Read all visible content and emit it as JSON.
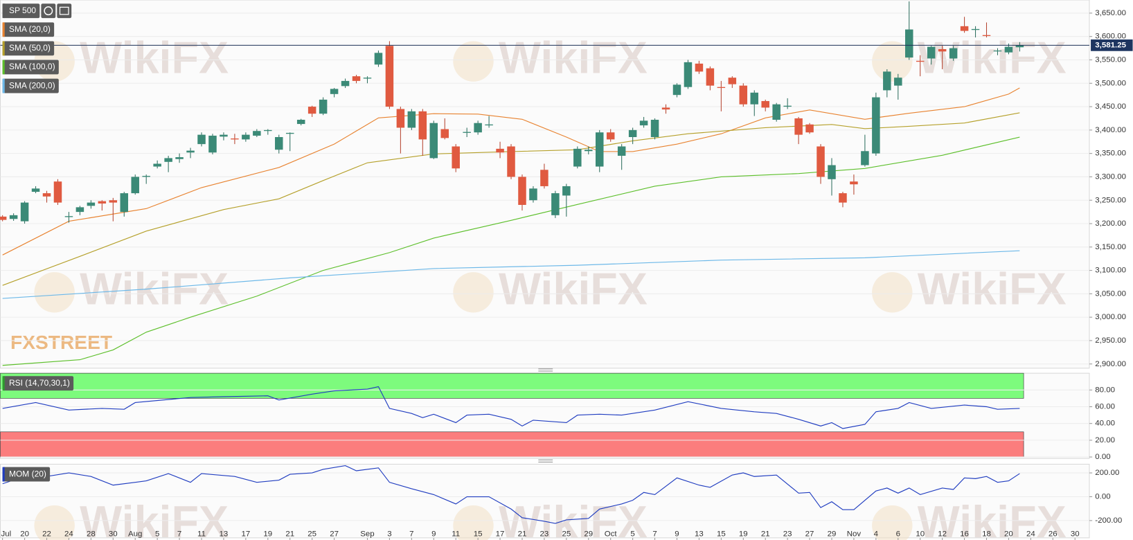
{
  "chart_data": [
    {
      "type": "candlestick",
      "title": "SP 500",
      "watermark": "WikiFX",
      "logo": "FXSTREET",
      "xlim": [
        -0.2,
        98.3
      ],
      "xticks": [
        {
          "value": 0,
          "label": "Jul"
        },
        {
          "value": 2,
          "label": "20"
        },
        {
          "value": 4,
          "label": "22"
        },
        {
          "value": 6,
          "label": "24"
        },
        {
          "value": 8,
          "label": "28"
        },
        {
          "value": 10,
          "label": "30"
        },
        {
          "value": 12,
          "label": "Aug"
        },
        {
          "value": 14,
          "label": "5"
        },
        {
          "value": 16,
          "label": "7"
        },
        {
          "value": 18,
          "label": "11"
        },
        {
          "value": 20,
          "label": "13"
        },
        {
          "value": 22,
          "label": "17"
        },
        {
          "value": 24,
          "label": "19"
        },
        {
          "value": 26,
          "label": "21"
        },
        {
          "value": 28,
          "label": "25"
        },
        {
          "value": 30,
          "label": "27"
        },
        {
          "value": 33,
          "label": "Sep"
        },
        {
          "value": 35,
          "label": "3"
        },
        {
          "value": 37,
          "label": "7"
        },
        {
          "value": 39,
          "label": "9"
        },
        {
          "value": 41,
          "label": "11"
        },
        {
          "value": 43,
          "label": "15"
        },
        {
          "value": 45,
          "label": "17"
        },
        {
          "value": 47,
          "label": "21"
        },
        {
          "value": 49,
          "label": "23"
        },
        {
          "value": 51,
          "label": "25"
        },
        {
          "value": 53,
          "label": "29"
        },
        {
          "value": 55,
          "label": "Oct"
        },
        {
          "value": 57,
          "label": "5"
        },
        {
          "value": 59,
          "label": "7"
        },
        {
          "value": 61,
          "label": "9"
        },
        {
          "value": 63,
          "label": "13"
        },
        {
          "value": 65,
          "label": "15"
        },
        {
          "value": 67,
          "label": "19"
        },
        {
          "value": 69,
          "label": "21"
        },
        {
          "value": 71,
          "label": "23"
        },
        {
          "value": 73,
          "label": "27"
        },
        {
          "value": 75,
          "label": "29"
        },
        {
          "value": 77,
          "label": "Nov"
        },
        {
          "value": 79,
          "label": "4"
        },
        {
          "value": 81,
          "label": "6"
        },
        {
          "value": 83,
          "label": "10"
        },
        {
          "value": 85,
          "label": "12"
        },
        {
          "value": 87,
          "label": "16"
        },
        {
          "value": 89,
          "label": "18"
        },
        {
          "value": 91,
          "label": "20"
        },
        {
          "value": 93,
          "label": "24"
        },
        {
          "value": 95,
          "label": "26"
        },
        {
          "value": 97,
          "label": "30"
        }
      ],
      "ylim": [
        2891,
        3678
      ],
      "yticks": [
        {
          "value": 2900,
          "label": "2,900.00"
        },
        {
          "value": 2950,
          "label": "2,950.00"
        },
        {
          "value": 3000,
          "label": "3,000.00"
        },
        {
          "value": 3050,
          "label": "3,050.00"
        },
        {
          "value": 3100,
          "label": "3,100.00"
        },
        {
          "value": 3150,
          "label": "3,150.00"
        },
        {
          "value": 3200,
          "label": "3,200.00"
        },
        {
          "value": 3250,
          "label": "3,250.00"
        },
        {
          "value": 3300,
          "label": "3,300.00"
        },
        {
          "value": 3350,
          "label": "3,350.00"
        },
        {
          "value": 3400,
          "label": "3,400.00"
        },
        {
          "value": 3450,
          "label": "3,450.00"
        },
        {
          "value": 3500,
          "label": "3,500.00"
        },
        {
          "value": 3550,
          "label": "3,550.00"
        },
        {
          "value": 3600,
          "label": "3,600.00"
        },
        {
          "value": 3650,
          "label": "3,650.00"
        }
      ],
      "grid": true,
      "up_color": "#3b8a77",
      "down_color": "#e05a40",
      "open": [
        3215,
        3210,
        3205,
        3268,
        3265,
        3290,
        3214,
        3225,
        3238,
        3248,
        3250,
        3225,
        3265,
        3300,
        3322,
        3332,
        3338,
        3352,
        3370,
        3352,
        3386,
        3382,
        3380,
        3388,
        3398,
        3358,
        3392,
        3413,
        3450,
        3435,
        3477,
        3494,
        3515,
        3510,
        3540,
        3580,
        3445,
        3405,
        3440,
        3340,
        3402,
        3365,
        3394,
        3395,
        3410,
        3360,
        3365,
        3300,
        3250,
        3315,
        3218,
        3260,
        3322,
        3355,
        3322,
        3395,
        3345,
        3385,
        3410,
        3385,
        3448,
        3475,
        3492,
        3542,
        3532,
        3492,
        3512,
        3495,
        3455,
        3462,
        3422,
        3450,
        3425,
        3412,
        3365,
        3295,
        3265,
        3290,
        3325,
        3350,
        3485,
        3495,
        3555,
        3548,
        3553,
        3573,
        3553,
        3622,
        3614,
        3603,
        3570,
        3566,
        3577
      ],
      "high": [
        3218,
        3222,
        3248,
        3280,
        3270,
        3295,
        3225,
        3238,
        3250,
        3250,
        3255,
        3268,
        3305,
        3305,
        3335,
        3345,
        3350,
        3362,
        3395,
        3392,
        3395,
        3392,
        3395,
        3402,
        3402,
        3390,
        3395,
        3424,
        3452,
        3470,
        3490,
        3510,
        3518,
        3515,
        3570,
        3590,
        3450,
        3445,
        3445,
        3420,
        3425,
        3370,
        3405,
        3420,
        3430,
        3375,
        3370,
        3305,
        3280,
        3328,
        3270,
        3285,
        3365,
        3365,
        3400,
        3402,
        3370,
        3405,
        3428,
        3425,
        3455,
        3500,
        3550,
        3548,
        3536,
        3505,
        3515,
        3500,
        3485,
        3465,
        3458,
        3468,
        3428,
        3415,
        3370,
        3340,
        3268,
        3305,
        3390,
        3480,
        3530,
        3520,
        3675,
        3560,
        3580,
        3580,
        3580,
        3642,
        3622,
        3630,
        3575,
        3585,
        3588
      ],
      "low": [
        3205,
        3206,
        3200,
        3265,
        3245,
        3240,
        3202,
        3218,
        3232,
        3228,
        3205,
        3215,
        3262,
        3285,
        3318,
        3310,
        3330,
        3340,
        3365,
        3348,
        3378,
        3370,
        3375,
        3385,
        3390,
        3350,
        3355,
        3410,
        3428,
        3432,
        3470,
        3490,
        3500,
        3500,
        3535,
        3445,
        3350,
        3400,
        3345,
        3338,
        3380,
        3310,
        3385,
        3390,
        3405,
        3340,
        3295,
        3228,
        3245,
        3275,
        3212,
        3215,
        3318,
        3348,
        3310,
        3375,
        3315,
        3370,
        3405,
        3380,
        3435,
        3470,
        3488,
        3520,
        3485,
        3440,
        3490,
        3450,
        3430,
        3440,
        3418,
        3445,
        3370,
        3392,
        3285,
        3260,
        3235,
        3262,
        3322,
        3345,
        3470,
        3465,
        3550,
        3515,
        3540,
        3530,
        3548,
        3608,
        3598,
        3598,
        3560,
        3562,
        3568
      ],
      "close": [
        3208,
        3218,
        3245,
        3275,
        3258,
        3245,
        3216,
        3235,
        3245,
        3243,
        3245,
        3265,
        3300,
        3302,
        3328,
        3340,
        3342,
        3356,
        3390,
        3388,
        3390,
        3380,
        3390,
        3398,
        3400,
        3385,
        3394,
        3422,
        3435,
        3465,
        3488,
        3505,
        3505,
        3512,
        3565,
        3450,
        3405,
        3440,
        3380,
        3415,
        3383,
        3318,
        3396,
        3415,
        3412,
        3352,
        3300,
        3240,
        3275,
        3280,
        3265,
        3280,
        3360,
        3358,
        3395,
        3380,
        3365,
        3400,
        3420,
        3422,
        3444,
        3497,
        3545,
        3525,
        3495,
        3490,
        3498,
        3455,
        3480,
        3448,
        3455,
        3452,
        3390,
        3395,
        3300,
        3325,
        3245,
        3284,
        3355,
        3470,
        3525,
        3512,
        3615,
        3546,
        3578,
        3568,
        3575,
        3612,
        3616,
        3601,
        3570,
        3578,
        3581.25
      ],
      "last": {
        "value": 3581.25,
        "label": "3,581.25"
      },
      "series": [
        {
          "name": "SMA (20,0)",
          "color": "#e8822f",
          "x": [
            0,
            6,
            13,
            18,
            25,
            30,
            34,
            39,
            43,
            47,
            51,
            54,
            57,
            61,
            65,
            69,
            73,
            78,
            82,
            87,
            91,
            92
          ],
          "values": [
            3133,
            3205,
            3232,
            3277,
            3320,
            3370,
            3426,
            3435,
            3434,
            3423,
            3385,
            3354,
            3354,
            3370,
            3392,
            3426,
            3443,
            3423,
            3436,
            3450,
            3477,
            3490
          ]
        },
        {
          "name": "SMA (50,0)",
          "color": "#b5a02a",
          "x": [
            0,
            7,
            13,
            20,
            25,
            29,
            33,
            39,
            46,
            52,
            57,
            62,
            69,
            75,
            78,
            82,
            87,
            92
          ],
          "values": [
            3068,
            3130,
            3184,
            3230,
            3253,
            3292,
            3330,
            3349,
            3354,
            3358,
            3377,
            3392,
            3405,
            3412,
            3403,
            3408,
            3415,
            3437
          ]
        },
        {
          "name": "SMA (100,0)",
          "color": "#5cbf2a",
          "x": [
            0,
            7,
            10,
            13,
            17,
            23,
            29,
            35,
            39,
            46,
            52,
            59,
            65,
            72,
            78,
            85,
            92
          ],
          "values": [
            2897,
            2909,
            2930,
            2968,
            3000,
            3045,
            3100,
            3138,
            3169,
            3207,
            3241,
            3280,
            3300,
            3307,
            3318,
            3346,
            3385
          ]
        },
        {
          "name": "SMA (200,0)",
          "color": "#6cb8e8",
          "x": [
            0,
            13,
            26,
            39,
            52,
            65,
            78,
            92
          ],
          "values": [
            3040,
            3060,
            3084,
            3104,
            3111,
            3122,
            3127,
            3142
          ]
        }
      ]
    },
    {
      "type": "line",
      "title": "RSI (14,70,30,1)",
      "title_color": "#2e9a2e",
      "ylim": [
        0,
        100
      ],
      "yticks": [
        {
          "value": 0,
          "label": "0.00"
        },
        {
          "value": 20,
          "label": "20.00"
        },
        {
          "value": 40,
          "label": "40.00"
        },
        {
          "value": 60,
          "label": "60.00"
        },
        {
          "value": 80,
          "label": "80.00"
        }
      ],
      "zones": [
        {
          "from": 70,
          "to": 100,
          "color": "#7dfb7d"
        },
        {
          "from": 0,
          "to": 30,
          "color": "#fb7d7d"
        }
      ],
      "series": [
        {
          "color": "#1f3cc0",
          "x": [
            0,
            3,
            6,
            9,
            11,
            12,
            17,
            20,
            24,
            25,
            28,
            30,
            33,
            34,
            35,
            37,
            38,
            39,
            41,
            42,
            44,
            46,
            47,
            48,
            51,
            52,
            54,
            56,
            59,
            62,
            65,
            68,
            70,
            72,
            74,
            75,
            76,
            78,
            79,
            81,
            82,
            84,
            87,
            89,
            90,
            92
          ],
          "values": [
            58,
            65,
            56,
            58,
            57,
            65,
            71,
            72,
            73,
            68,
            75,
            79,
            81,
            84,
            58,
            52,
            47,
            51,
            41,
            50,
            51,
            45,
            37,
            44,
            41,
            50,
            51,
            50,
            56,
            66,
            58,
            54,
            52,
            45,
            37,
            41,
            34,
            39,
            54,
            58,
            65,
            58,
            62,
            60,
            57,
            58
          ]
        }
      ]
    },
    {
      "type": "line",
      "title": "MOM (20)",
      "title_color": "#1f3cc0",
      "ylim": [
        -345,
        273
      ],
      "yticks": [
        {
          "value": -200,
          "label": "-200.00"
        },
        {
          "value": 0,
          "label": "0.00"
        },
        {
          "value": 200,
          "label": "200.00"
        }
      ],
      "series": [
        {
          "color": "#1f3cc0",
          "x": [
            0,
            2,
            4,
            6,
            8,
            10,
            12,
            13,
            15,
            17,
            18,
            21,
            23,
            25,
            26,
            28,
            29,
            31,
            32,
            34,
            35,
            37,
            39,
            41,
            42,
            44,
            46,
            47,
            49,
            50,
            51,
            53,
            54,
            56,
            57,
            58,
            59,
            61,
            63,
            64,
            66,
            67,
            68,
            70,
            72,
            73,
            74,
            75,
            76,
            77,
            79,
            80,
            81,
            82,
            83,
            85,
            86,
            87,
            88,
            89,
            90,
            91,
            92
          ],
          "values": [
            109,
            170,
            170,
            200,
            170,
            97,
            121,
            133,
            194,
            121,
            194,
            170,
            121,
            139,
            188,
            200,
            230,
            261,
            218,
            242,
            121,
            67,
            18,
            -61,
            0,
            0,
            -103,
            -176,
            -206,
            -224,
            -194,
            -182,
            -103,
            -61,
            -30,
            36,
            18,
            158,
            97,
            79,
            182,
            200,
            170,
            182,
            30,
            36,
            -91,
            -42,
            -109,
            -109,
            48,
            73,
            30,
            73,
            18,
            73,
            61,
            158,
            152,
            170,
            121,
            133,
            194
          ]
        }
      ]
    }
  ]
}
